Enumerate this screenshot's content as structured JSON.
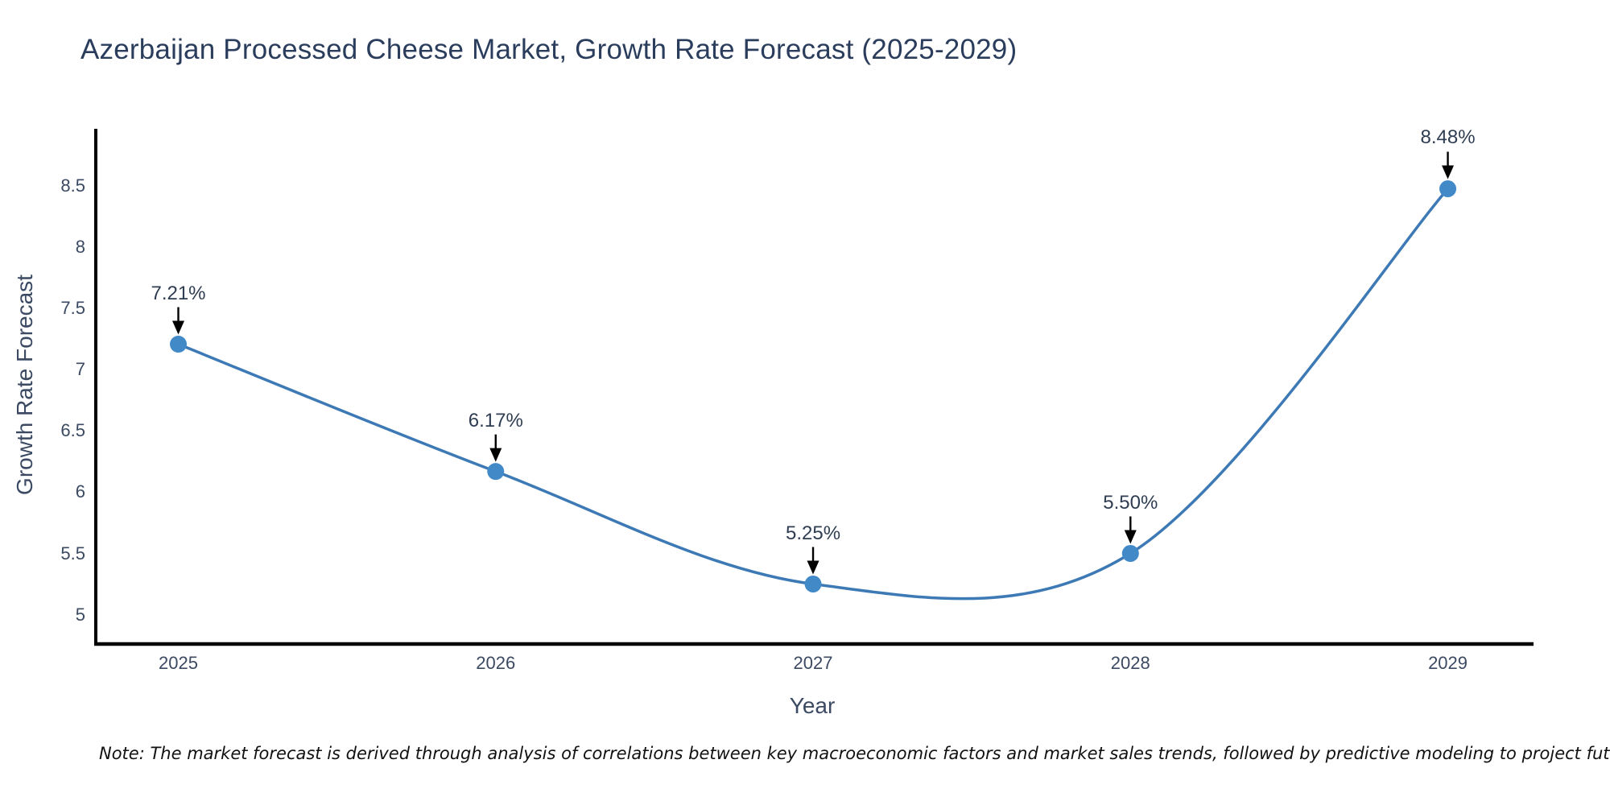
{
  "title": {
    "text": "Azerbaijan Processed Cheese Market, Growth Rate Forecast (2025-2029)",
    "color": "#2b3d5c"
  },
  "note": {
    "text": "Note: The market forecast is derived through analysis of correlations between key macroeconomic factors and market sales trends, followed by predictive modeling to project future sales"
  },
  "chart_data": {
    "type": "line",
    "title": "Azerbaijan Processed Cheese Market, Growth Rate Forecast (2025-2029)",
    "xlabel": "Year",
    "ylabel": "Growth Rate Forecast",
    "x": [
      2025,
      2026,
      2027,
      2028,
      2029
    ],
    "series": [
      {
        "name": "Growth Rate Forecast",
        "values": [
          7.21,
          6.17,
          5.25,
          5.5,
          8.48
        ],
        "point_labels": [
          "7.21%",
          "6.17%",
          "5.25%",
          "5.50%",
          "8.48%"
        ]
      }
    ],
    "xtick_labels": [
      "2025",
      "2026",
      "2027",
      "2028",
      "2029"
    ],
    "yticks": [
      5,
      5.5,
      6,
      6.5,
      7,
      7.5,
      8,
      8.5
    ],
    "ytick_labels": [
      "5",
      "5.5",
      "6",
      "6.5",
      "7",
      "7.5",
      "8",
      "8.5"
    ],
    "xlim": [
      2024.74,
      2029.27
    ],
    "ylim": [
      4.76,
      8.97
    ],
    "line_shape": "spline",
    "grid": false,
    "legend": "none",
    "annotation_style": "value-label-with-down-arrow",
    "colors": {
      "line": "#3d7ab5",
      "marker": "#4289c8",
      "arrow": "#000000",
      "axis": "#000000",
      "title_text": "#2b3d5c",
      "tick_text": "#3b4a62",
      "note_text": "#111111",
      "background": "#ffffff"
    }
  }
}
